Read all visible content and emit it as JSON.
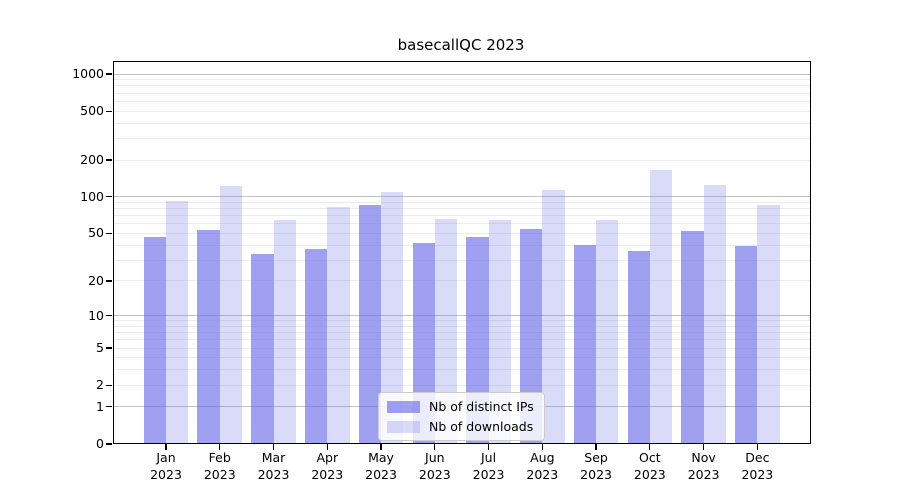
{
  "chart_data": {
    "type": "bar",
    "title": "basecallQC 2023",
    "categories": [
      "Jan",
      "Feb",
      "Mar",
      "Apr",
      "May",
      "Jun",
      "Jul",
      "Aug",
      "Sep",
      "Oct",
      "Nov",
      "Dec"
    ],
    "year": "2023",
    "series": [
      {
        "name": "Nb of distinct IPs",
        "color": "rgba(102,102,232,0.62)",
        "values": [
          47,
          53,
          34,
          37,
          86,
          42,
          47,
          54,
          40,
          36,
          52,
          39
        ]
      },
      {
        "name": "Nb of downloads",
        "color": "rgba(102,102,232,0.24)",
        "values": [
          93,
          123,
          64,
          82,
          110,
          66,
          65,
          113,
          65,
          165,
          125,
          85
        ]
      }
    ],
    "yscale": "log1p",
    "ylim": [
      0,
      1280
    ],
    "y_tick_values": [
      1000,
      500,
      200,
      100,
      50,
      20,
      10,
      5,
      2,
      1,
      0
    ],
    "y_tick_labels": [
      "1000",
      "500",
      "200",
      "100",
      "50",
      "20",
      "10",
      "5",
      "2",
      "1",
      "0"
    ],
    "grid": true,
    "legend_position": "bottom-center"
  },
  "colors": {
    "bar_base": "#6666e8",
    "grid_major": "#c2c2c2",
    "grid_minor": "#ececec",
    "frame": "#000000",
    "background": "#ffffff"
  }
}
